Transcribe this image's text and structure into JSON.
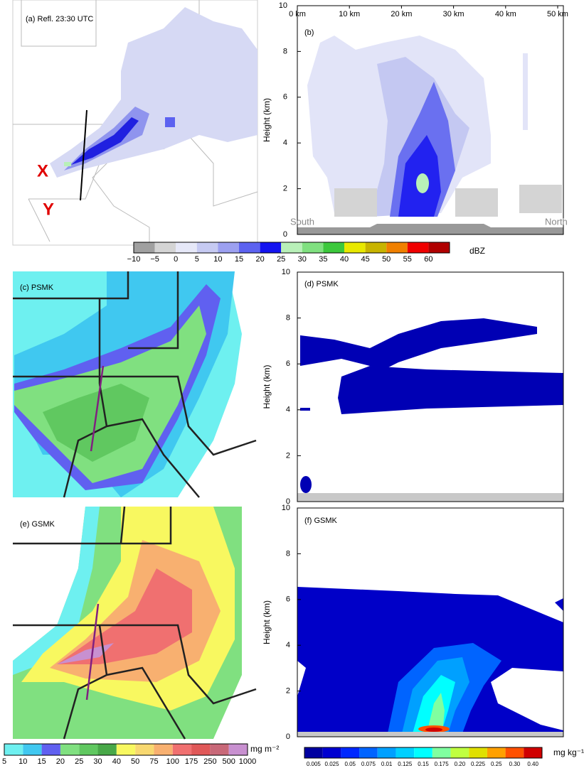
{
  "panels": {
    "a": {
      "label": "(a) Refl. 23:30 UTC",
      "point_x": "X",
      "point_y": "Y"
    },
    "b": {
      "label": "(b)",
      "ylabel": "Height (km)",
      "ylim": [
        0,
        10
      ],
      "yticks": [
        0,
        2,
        4,
        6,
        8,
        10
      ],
      "xlim": [
        0,
        50
      ],
      "xticks": [
        {
          "value": 0,
          "label": "0 km"
        },
        {
          "value": 10,
          "label": "10 km"
        },
        {
          "value": 20,
          "label": "20 km"
        },
        {
          "value": 30,
          "label": "30 km"
        },
        {
          "value": 40,
          "label": "40 km"
        },
        {
          "value": 50,
          "label": "50 km"
        }
      ],
      "south": "South",
      "north": "North"
    },
    "c": {
      "label": "(c) PSMK"
    },
    "d": {
      "label": "(d) PSMK",
      "ylabel": "Height (km)",
      "ylim": [
        0,
        10
      ],
      "yticks": [
        0,
        2,
        4,
        6,
        8,
        10
      ]
    },
    "e": {
      "label": "(e) GSMK"
    },
    "f": {
      "label": "(f) GSMK",
      "ylabel": "Height (km)",
      "ylim": [
        0,
        10
      ],
      "yticks": [
        0,
        2,
        4,
        6,
        8,
        10
      ]
    }
  },
  "colorbars": {
    "dbz": {
      "unit": "dBZ",
      "ticks": [
        "−10",
        "−5",
        "0",
        "5",
        "10",
        "15",
        "20",
        "25",
        "30",
        "35",
        "40",
        "45",
        "50",
        "55",
        "60"
      ],
      "colors": [
        "#a0a0a0",
        "#d4d4d4",
        "#e6e8f8",
        "#c6caf2",
        "#9ca0f0",
        "#5c62f0",
        "#1414f0",
        "#b8f0b8",
        "#80e080",
        "#3cc83c",
        "#e8e800",
        "#c8b400",
        "#f08000",
        "#f00000",
        "#b00000"
      ]
    },
    "column": {
      "unit": "mg m⁻²",
      "ticks": [
        "5",
        "10",
        "15",
        "20",
        "25",
        "30",
        "40",
        "50",
        "75",
        "100",
        "175",
        "250",
        "500",
        "1000"
      ],
      "colors": [
        "#6ef0f0",
        "#40c8f0",
        "#6060f0",
        "#80e080",
        "#60c860",
        "#48a848",
        "#f8f860",
        "#f8d870",
        "#f8b070",
        "#f07070",
        "#e05858",
        "#c86878",
        "#c890d0"
      ]
    },
    "mix": {
      "unit": "mg kg⁻¹",
      "ticks": [
        "0.005",
        "0.025",
        "0.05",
        "0.075",
        "0.01",
        "0.125",
        "0.15",
        "0.175",
        "0.20",
        "0.225",
        "0.25",
        "0.30",
        "0.40"
      ],
      "colors": [
        "#0000a0",
        "#0000d0",
        "#0028ff",
        "#0064ff",
        "#00a0ff",
        "#00d0ff",
        "#00ffff",
        "#80ffa0",
        "#c0ff40",
        "#e0e000",
        "#ffa000",
        "#ff5000",
        "#d00000"
      ]
    }
  }
}
